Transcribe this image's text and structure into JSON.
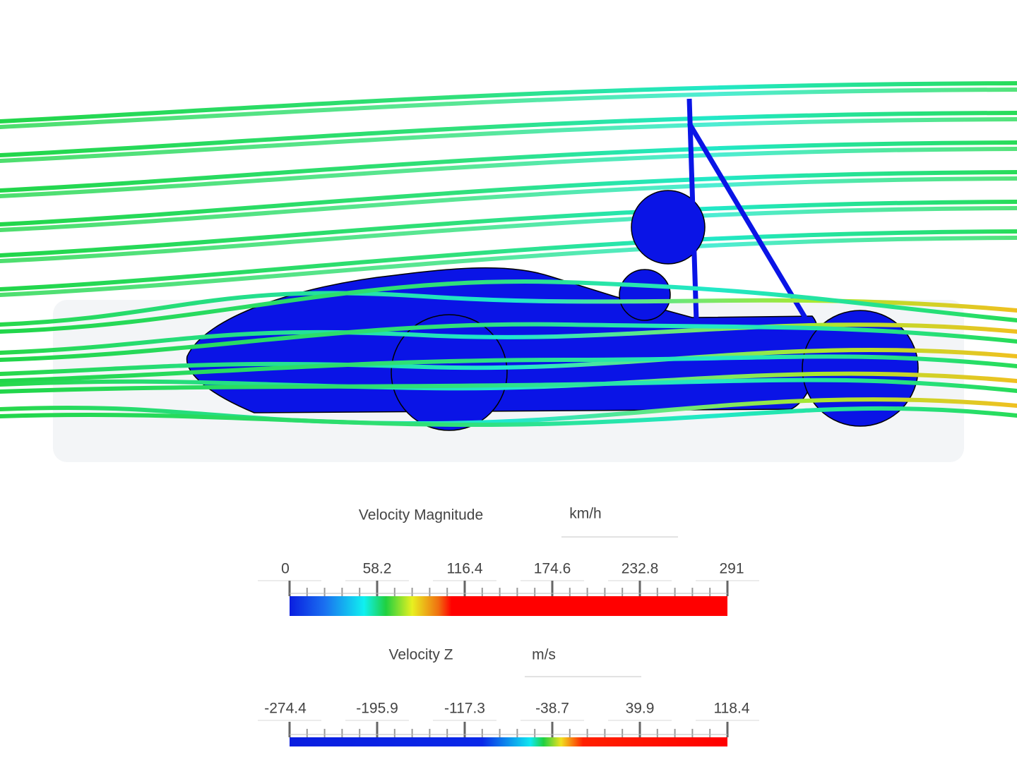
{
  "legends": [
    {
      "title": "Velocity Magnitude",
      "unit": "km/h",
      "ticks": [
        0,
        58.2,
        116.4,
        174.6,
        232.8,
        291
      ]
    },
    {
      "title": "Velocity Z",
      "unit": "m/s",
      "ticks": [
        -274.4,
        -195.9,
        -117.3,
        -38.7,
        39.9,
        118.4
      ]
    }
  ]
}
